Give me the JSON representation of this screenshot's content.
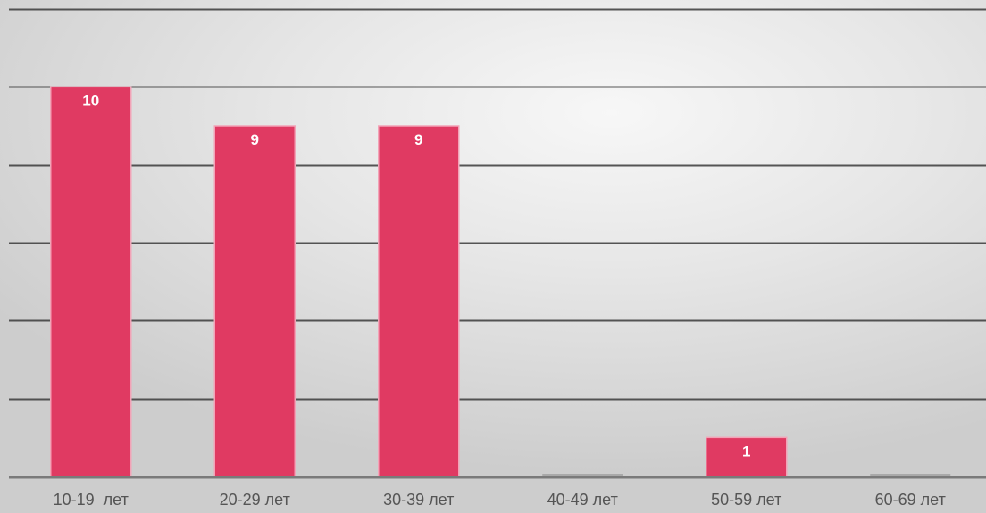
{
  "chart_data": {
    "type": "bar",
    "title": "",
    "xlabel": "",
    "ylabel": "",
    "categories": [
      "10-19  лет",
      "20-29 лет",
      "30-39 лет",
      "40-49 лет",
      "50-59 лет",
      "60-69 лет"
    ],
    "values": [
      10,
      9,
      9,
      0,
      1,
      0
    ],
    "data_labels": [
      "10",
      "9",
      "9",
      "",
      "1",
      ""
    ],
    "ylim": [
      0,
      12
    ],
    "ytick_step": 2,
    "grid": true,
    "legend": "none",
    "colors": {
      "bar": "#e03a62",
      "bar_edge": "#f2a3b7",
      "zero_bar": "#a9a9a9",
      "grid": "#3a3a3a",
      "axis": "#7a7a7a",
      "label": "#555555",
      "value_label": "#ffffff"
    }
  }
}
